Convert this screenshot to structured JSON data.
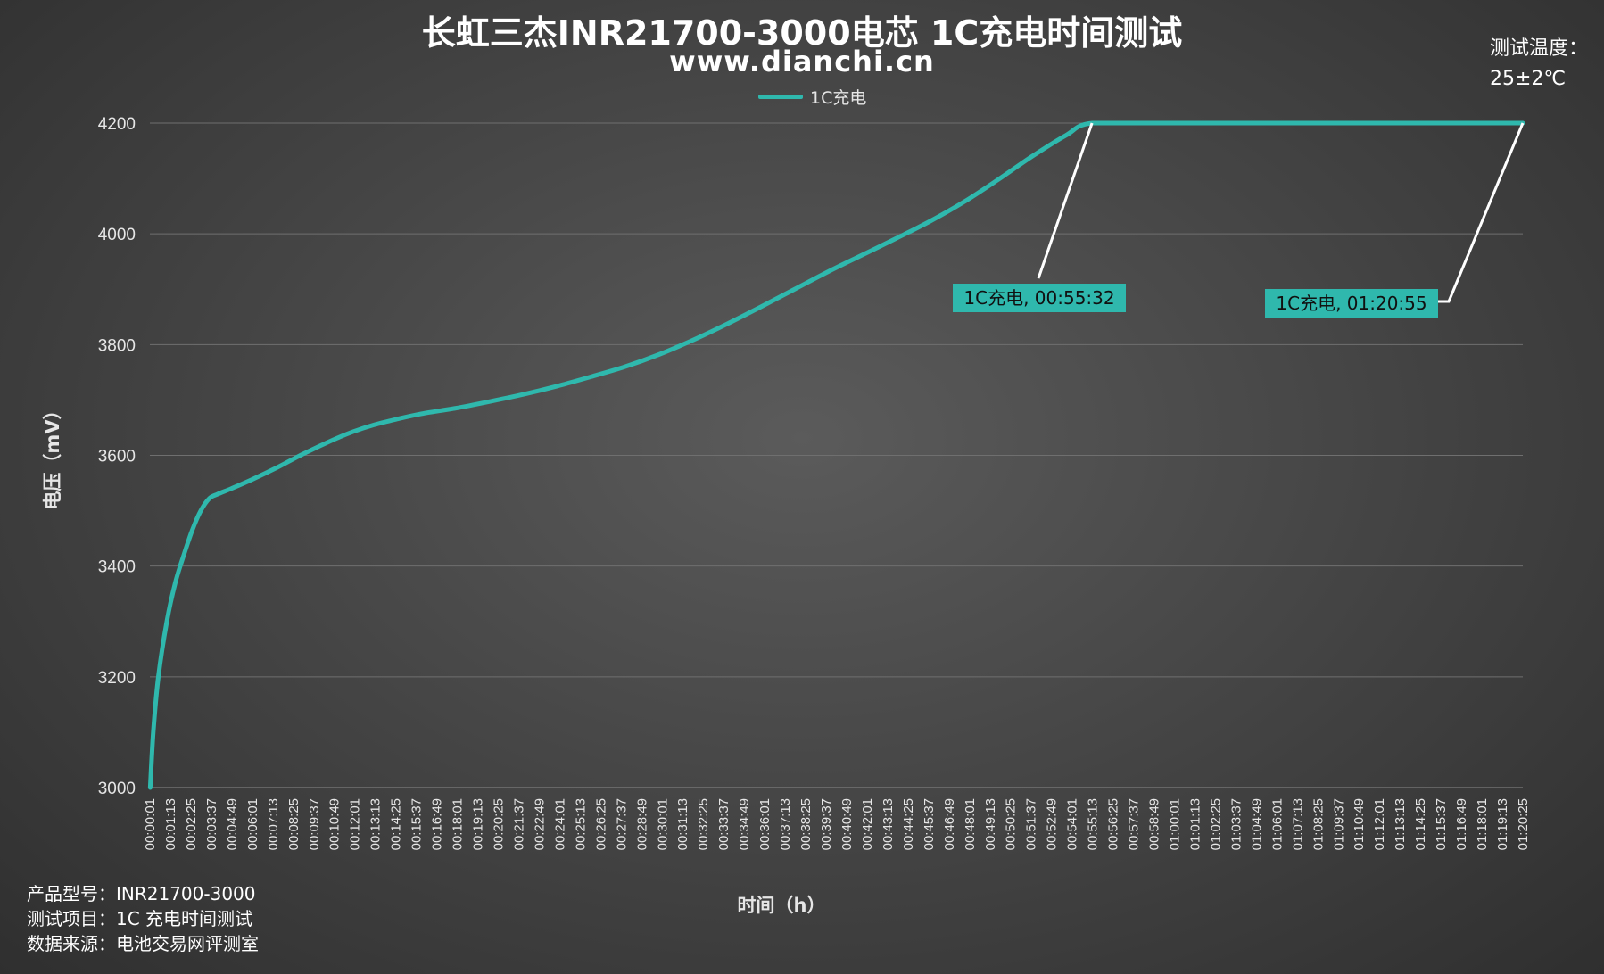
{
  "header": {
    "title": "长虹三杰INR21700-3000电芯 1C充电时间测试",
    "subtitle": "www.dianchi.cn"
  },
  "temperature": {
    "label": "测试温度：",
    "value": "25±2℃"
  },
  "footer": {
    "model": "产品型号：INR21700-3000",
    "item": "测试项目：1C 充电时间测试",
    "source": "数据来源：电池交易网评测室"
  },
  "chart_data": {
    "type": "line",
    "title": "长虹三杰INR21700-3000电芯 1C充电时间测试",
    "xlabel": "时间（h）",
    "ylabel": "电压（mV）",
    "ylim": [
      3000,
      4200
    ],
    "yticks": [
      3000,
      3200,
      3400,
      3600,
      3800,
      4000,
      4200
    ],
    "grid": true,
    "legend_position": "top-center",
    "line_color": "#2fb8ad",
    "xticks": [
      "00:00:01",
      "00:01:13",
      "00:02:25",
      "00:03:37",
      "00:04:49",
      "00:06:01",
      "00:07:13",
      "00:08:25",
      "00:09:37",
      "00:10:49",
      "00:12:01",
      "00:13:13",
      "00:14:25",
      "00:15:37",
      "00:16:49",
      "00:18:01",
      "00:19:13",
      "00:20:25",
      "00:21:37",
      "00:22:49",
      "00:24:01",
      "00:25:13",
      "00:26:25",
      "00:27:37",
      "00:28:49",
      "00:30:01",
      "00:31:13",
      "00:32:25",
      "00:33:37",
      "00:34:49",
      "00:36:01",
      "00:37:13",
      "00:38:25",
      "00:39:37",
      "00:40:49",
      "00:42:01",
      "00:43:13",
      "00:44:25",
      "00:45:37",
      "00:46:49",
      "00:48:01",
      "00:49:13",
      "00:50:25",
      "00:51:37",
      "00:52:49",
      "00:54:01",
      "00:55:13",
      "00:56:25",
      "00:57:37",
      "00:58:49",
      "01:00:01",
      "01:01:13",
      "01:02:25",
      "01:03:37",
      "01:04:49",
      "01:06:01",
      "01:07:13",
      "01:08:25",
      "01:09:37",
      "01:10:49",
      "01:12:01",
      "01:13:13",
      "01:14:25",
      "01:15:37",
      "01:16:49",
      "01:18:01",
      "01:19:13",
      "01:20:25"
    ],
    "series": [
      {
        "name": "1C充电",
        "x_minutes": [
          0.02,
          0.2,
          0.5,
          1.0,
          1.5,
          2.0,
          2.5,
          3.0,
          3.5,
          4.0,
          4.8,
          6.0,
          7.5,
          9.0,
          10.8,
          12.0,
          13.2,
          14.5,
          16.0,
          18.0,
          20.0,
          22.0,
          24.0,
          26.0,
          28.0,
          30.0,
          32.0,
          34.0,
          36.0,
          38.0,
          40.0,
          42.0,
          44.0,
          46.0,
          48.0,
          50.0,
          52.0,
          54.0,
          55.53,
          60.0,
          65.0,
          70.0,
          75.0,
          80.92
        ],
        "values": [
          3000,
          3100,
          3200,
          3300,
          3370,
          3420,
          3465,
          3500,
          3522,
          3530,
          3540,
          3556,
          3578,
          3602,
          3628,
          3643,
          3655,
          3665,
          3675,
          3685,
          3697,
          3710,
          3725,
          3742,
          3760,
          3782,
          3808,
          3837,
          3868,
          3900,
          3932,
          3962,
          3992,
          4023,
          4058,
          4098,
          4140,
          4178,
          4200,
          4200,
          4200,
          4200,
          4200,
          4200
        ]
      }
    ],
    "annotations": [
      {
        "text": "1C充电, 00:55:32",
        "x_minutes": 55.53,
        "y": 4200
      },
      {
        "text": "1C充电, 01:20:55",
        "x_minutes": 80.92,
        "y": 4200
      }
    ]
  }
}
